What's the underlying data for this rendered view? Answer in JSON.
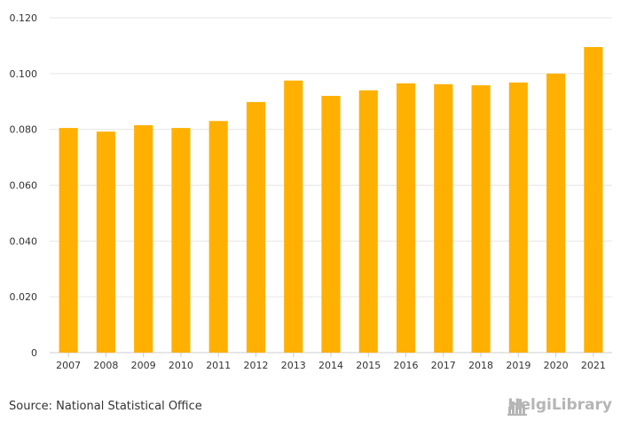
{
  "chart_data": {
    "type": "bar",
    "categories": [
      "2007",
      "2008",
      "2009",
      "2010",
      "2011",
      "2012",
      "2013",
      "2014",
      "2015",
      "2016",
      "2017",
      "2018",
      "2019",
      "2020",
      "2021"
    ],
    "values": [
      0.0805,
      0.0792,
      0.0815,
      0.0805,
      0.083,
      0.0898,
      0.0975,
      0.092,
      0.094,
      0.0965,
      0.0962,
      0.0958,
      0.0968,
      0.1,
      0.1095
    ],
    "ylim": [
      0,
      0.12
    ],
    "yticks": [
      0,
      0.02,
      0.04,
      0.06,
      0.08,
      0.1,
      0.12
    ],
    "ytick_labels": [
      "0",
      "0.020",
      "0.040",
      "0.060",
      "0.080",
      "0.100",
      "0.120"
    ],
    "grid": true,
    "bar_color": "#ffb000"
  },
  "footer": {
    "source": "Source: National Statistical Office",
    "logo_text": "HelgiLibrary"
  },
  "colors": {
    "grid": "#e6e6e6",
    "axis": "#cccccc",
    "logo": "#b5b5b5"
  },
  "icons": {
    "logo": "city-skyline-icon"
  }
}
